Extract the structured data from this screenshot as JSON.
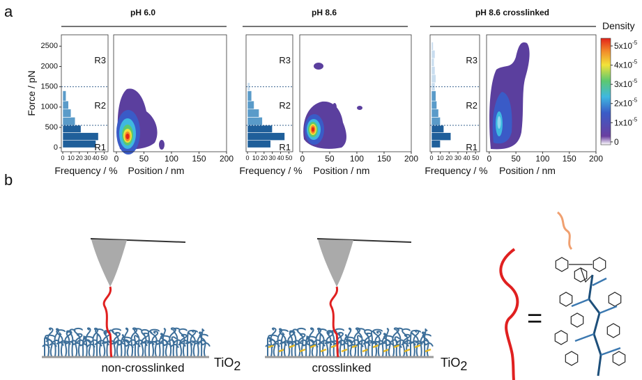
{
  "panel_labels": [
    "a",
    "b"
  ],
  "chart_data": [
    {
      "type": "histogram",
      "title": "pH 6.0",
      "ylabel": "Force / pN",
      "hist_xlabel": "Frequency / %",
      "xlabel": "Position / nm",
      "ylim": [
        -100,
        2780
      ],
      "yticks": [
        0,
        500,
        1000,
        1500,
        2000,
        2500
      ],
      "hist_xlim": [
        0,
        53
      ],
      "hist_xticks": [
        0,
        10,
        20,
        30,
        40,
        50
      ],
      "xlim": [
        -5,
        200
      ],
      "xticks": [
        0,
        50,
        100,
        150,
        200
      ],
      "bins": [
        0,
        180,
        370,
        550,
        750,
        950,
        1150,
        1400
      ],
      "counts": [
        40,
        43,
        22,
        15,
        10,
        7,
        4
      ],
      "region_lines": [
        550,
        1500
      ],
      "region_labels": [
        "R1",
        "R2",
        "R3"
      ],
      "colors": [
        "#1f5f9a",
        "#5a9bc9",
        "#c8ddef"
      ]
    },
    {
      "type": "histogram",
      "title": "pH 8.6",
      "hist_xlabel": "Frequency / %",
      "xlabel": "Position / nm",
      "ylim": [
        -100,
        2780
      ],
      "hist_xlim": [
        0,
        53
      ],
      "hist_xticks": [
        0,
        10,
        20,
        30,
        40,
        50
      ],
      "xlim": [
        -5,
        200
      ],
      "xticks": [
        0,
        50,
        100,
        150,
        200
      ],
      "bins": [
        0,
        180,
        370,
        550,
        750,
        950,
        1150,
        1400,
        1600
      ],
      "counts": [
        28,
        45,
        30,
        18,
        14,
        8,
        5,
        3
      ],
      "region_lines": [
        550,
        1500
      ],
      "region_labels": [
        "R1",
        "R2",
        "R3"
      ],
      "colors": [
        "#1f5f9a",
        "#5a9bc9",
        "#c8ddef"
      ]
    },
    {
      "type": "histogram",
      "title": "pH 8.6 crosslinked",
      "hist_xlabel": "Frequency / %",
      "xlabel": "Position / nm",
      "ylim": [
        -100,
        2780
      ],
      "hist_xlim": [
        0,
        53
      ],
      "hist_xticks": [
        0,
        10,
        20,
        30,
        40,
        50
      ],
      "xlim": [
        -5,
        200
      ],
      "xticks": [
        0,
        50,
        100,
        150,
        200
      ],
      "bins": [
        0,
        180,
        370,
        550,
        750,
        950,
        1150,
        1400,
        1600,
        1800,
        2000,
        2200,
        2400,
        2600
      ],
      "counts": [
        10,
        22,
        14,
        10,
        8,
        6,
        5,
        4,
        5,
        4,
        3,
        4,
        2
      ],
      "region_lines": [
        550,
        1500
      ],
      "region_labels": [
        "R1",
        "R2",
        "R3"
      ],
      "colors": [
        "#1f5f9a",
        "#5a9bc9",
        "#c8ddef"
      ]
    }
  ],
  "colorbar": {
    "title": "Density",
    "clim": [
      -1.5e-06,
      5.4e-05
    ],
    "ticks": [
      0,
      {
        "value": 1e-05,
        "mantissa": "1x10",
        "exponent": "-5"
      },
      {
        "value": 2e-05,
        "mantissa": "2x10",
        "exponent": "-5"
      },
      {
        "value": 3e-05,
        "mantissa": "3x10",
        "exponent": "-5"
      },
      {
        "value": 4e-05,
        "mantissa": "4x10",
        "exponent": "-5"
      },
      {
        "value": 5e-05,
        "mantissa": "5x10",
        "exponent": "-5"
      }
    ]
  },
  "diagram": {
    "labels": [
      "non-crosslinked",
      "crosslinked"
    ],
    "substrate": {
      "base": "TiO",
      "sub": "2"
    },
    "equals": "="
  }
}
